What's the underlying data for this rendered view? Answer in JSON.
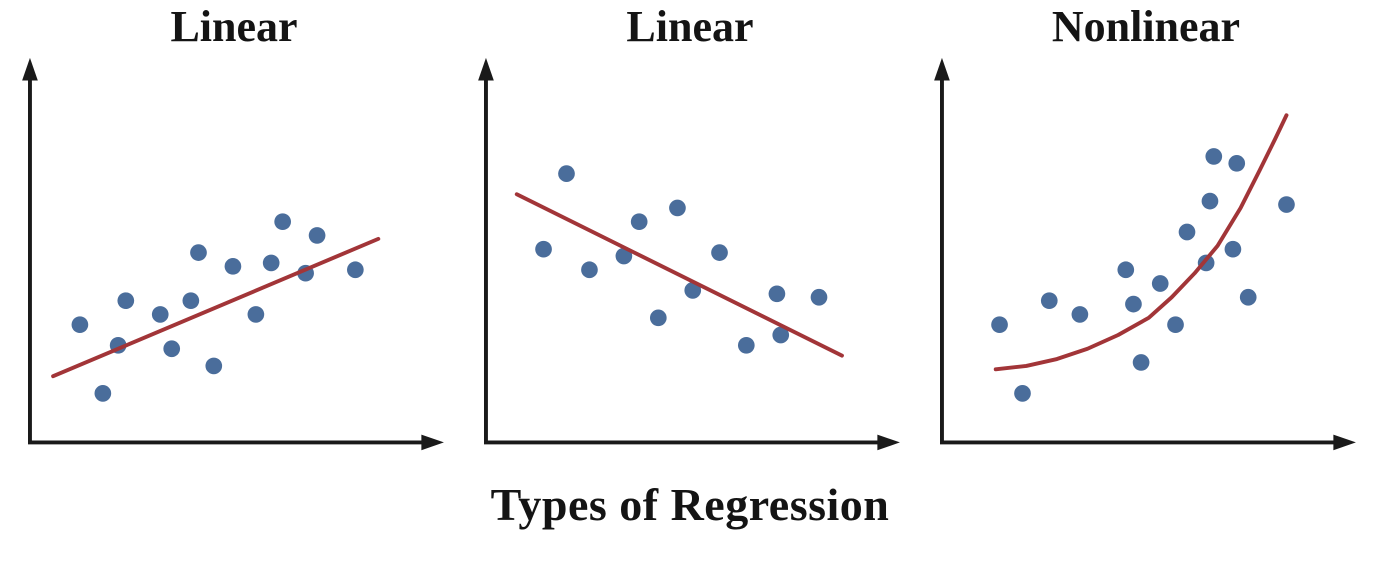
{
  "caption": "Types of Regression",
  "colors": {
    "dot": "#4a6d9b",
    "fit": "#a23538",
    "axis": "#1a1a1a",
    "background": "#ffffff"
  },
  "chart_data": [
    {
      "type": "scatter",
      "title": "Linear",
      "trend": "increasing linear",
      "xlabel": "",
      "ylabel": "",
      "xlim": [
        0,
        100
      ],
      "ylim": [
        0,
        100
      ],
      "grid": false,
      "legend": false,
      "value_scale": "normalized 0-100 (axes unlabeled, values estimated)",
      "points": [
        [
          11,
          32
        ],
        [
          17,
          12
        ],
        [
          21,
          26
        ],
        [
          23,
          39
        ],
        [
          32,
          35
        ],
        [
          35,
          25
        ],
        [
          40,
          39
        ],
        [
          42,
          53
        ],
        [
          46,
          20
        ],
        [
          51,
          49
        ],
        [
          57,
          35
        ],
        [
          61,
          50
        ],
        [
          64,
          62
        ],
        [
          70,
          47
        ],
        [
          73,
          58
        ],
        [
          83,
          48
        ]
      ],
      "fit": {
        "type": "line",
        "points": [
          [
            4,
            17
          ],
          [
            89,
            57
          ]
        ]
      }
    },
    {
      "type": "scatter",
      "title": "Linear",
      "trend": "decreasing linear",
      "xlabel": "",
      "ylabel": "",
      "xlim": [
        0,
        100
      ],
      "ylim": [
        0,
        100
      ],
      "grid": false,
      "legend": false,
      "value_scale": "normalized 0-100 (axes unlabeled, values estimated)",
      "points": [
        [
          13,
          54
        ],
        [
          19,
          76
        ],
        [
          25,
          48
        ],
        [
          34,
          52
        ],
        [
          38,
          62
        ],
        [
          43,
          34
        ],
        [
          48,
          66
        ],
        [
          52,
          42
        ],
        [
          59,
          53
        ],
        [
          66,
          26
        ],
        [
          74,
          41
        ],
        [
          75,
          29
        ],
        [
          85,
          40
        ]
      ],
      "fit": {
        "type": "line",
        "points": [
          [
            6,
            70
          ],
          [
            91,
            23
          ]
        ]
      }
    },
    {
      "type": "scatter",
      "title": "Nonlinear",
      "trend": "increasing exponential",
      "xlabel": "",
      "ylabel": "",
      "xlim": [
        0,
        100
      ],
      "ylim": [
        0,
        100
      ],
      "grid": false,
      "legend": false,
      "value_scale": "normalized 0-100 (axes unlabeled, values estimated)",
      "points": [
        [
          13,
          32
        ],
        [
          19,
          12
        ],
        [
          26,
          39
        ],
        [
          34,
          35
        ],
        [
          46,
          48
        ],
        [
          48,
          38
        ],
        [
          50,
          21
        ],
        [
          55,
          44
        ],
        [
          59,
          32
        ],
        [
          62,
          59
        ],
        [
          67,
          50
        ],
        [
          68,
          68
        ],
        [
          69,
          81
        ],
        [
          74,
          54
        ],
        [
          75,
          79
        ],
        [
          78,
          40
        ],
        [
          88,
          67
        ]
      ],
      "fit": {
        "type": "curve",
        "points": [
          [
            12,
            19
          ],
          [
            20,
            20
          ],
          [
            28,
            22
          ],
          [
            36,
            25
          ],
          [
            44,
            29
          ],
          [
            52,
            34
          ],
          [
            58,
            40
          ],
          [
            64,
            47
          ],
          [
            70,
            55
          ],
          [
            76,
            66
          ],
          [
            81,
            77
          ],
          [
            85,
            86
          ],
          [
            88,
            93
          ]
        ]
      }
    }
  ]
}
